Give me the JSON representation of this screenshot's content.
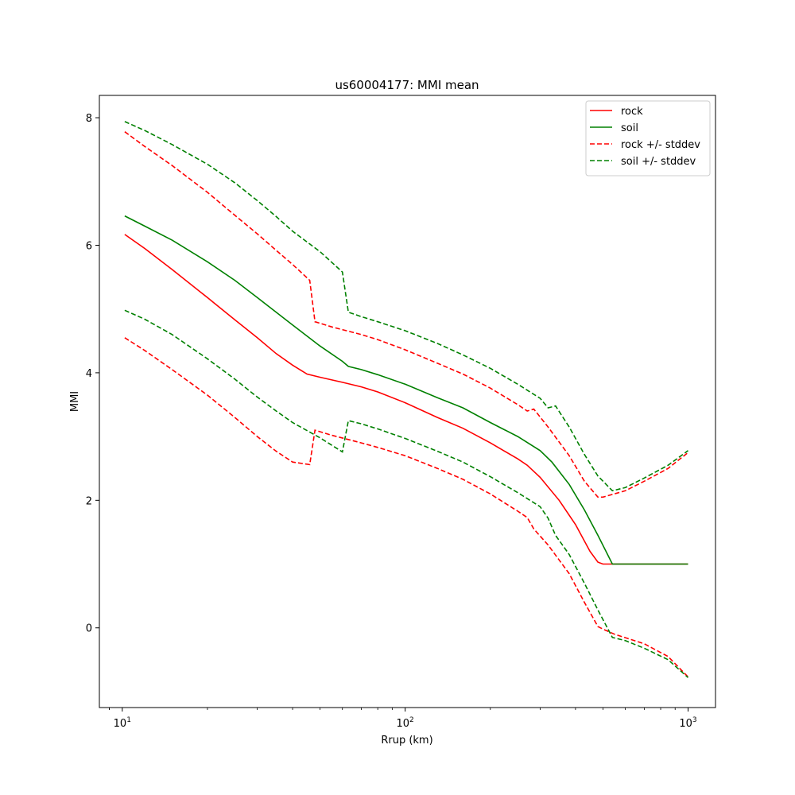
{
  "chart_data": {
    "type": "line",
    "title": "us60004177: MMI mean",
    "xlabel": "Rrup (km)",
    "ylabel": "MMI",
    "xscale": "log",
    "xlim": [
      8.3,
      1250
    ],
    "ylim": [
      -1.25,
      8.35
    ],
    "x_ticks": [
      {
        "value": 10,
        "base": "10",
        "exp": "1"
      },
      {
        "value": 100,
        "base": "10",
        "exp": "2"
      },
      {
        "value": 1000,
        "base": "10",
        "exp": "3"
      }
    ],
    "y_ticks": [
      0,
      2,
      4,
      6,
      8
    ],
    "legend_position": "top-right",
    "grid": false,
    "series": [
      {
        "name": "rock",
        "color": "#ff0000",
        "style": "solid",
        "points": [
          [
            10.2,
            6.17
          ],
          [
            12,
            5.95
          ],
          [
            15,
            5.62
          ],
          [
            20,
            5.18
          ],
          [
            25,
            4.83
          ],
          [
            30,
            4.55
          ],
          [
            35,
            4.3
          ],
          [
            40,
            4.12
          ],
          [
            45,
            3.98
          ],
          [
            50,
            3.93
          ],
          [
            60,
            3.85
          ],
          [
            70,
            3.78
          ],
          [
            80,
            3.7
          ],
          [
            100,
            3.53
          ],
          [
            130,
            3.3
          ],
          [
            160,
            3.13
          ],
          [
            200,
            2.9
          ],
          [
            250,
            2.65
          ],
          [
            270,
            2.55
          ],
          [
            300,
            2.36
          ],
          [
            350,
            2.0
          ],
          [
            400,
            1.62
          ],
          [
            450,
            1.2
          ],
          [
            480,
            1.03
          ],
          [
            500,
            1.0
          ],
          [
            550,
            1.0
          ],
          [
            700,
            1.0
          ],
          [
            1000,
            1.0
          ]
        ]
      },
      {
        "name": "soil",
        "color": "#008000",
        "style": "solid",
        "points": [
          [
            10.2,
            6.46
          ],
          [
            12,
            6.3
          ],
          [
            15,
            6.08
          ],
          [
            20,
            5.74
          ],
          [
            25,
            5.45
          ],
          [
            30,
            5.18
          ],
          [
            35,
            4.95
          ],
          [
            40,
            4.75
          ],
          [
            50,
            4.42
          ],
          [
            60,
            4.18
          ],
          [
            63,
            4.1
          ],
          [
            70,
            4.05
          ],
          [
            80,
            3.97
          ],
          [
            100,
            3.82
          ],
          [
            130,
            3.61
          ],
          [
            160,
            3.45
          ],
          [
            200,
            3.22
          ],
          [
            250,
            3.0
          ],
          [
            300,
            2.78
          ],
          [
            330,
            2.6
          ],
          [
            380,
            2.25
          ],
          [
            430,
            1.85
          ],
          [
            480,
            1.45
          ],
          [
            540,
            1.0
          ],
          [
            600,
            1.0
          ],
          [
            800,
            1.0
          ],
          [
            1000,
            1.0
          ]
        ]
      },
      {
        "name": "rock +/- stddev",
        "color": "#ff0000",
        "style": "dashed",
        "points": [
          [
            10.2,
            7.78
          ],
          [
            12,
            7.55
          ],
          [
            15,
            7.25
          ],
          [
            20,
            6.83
          ],
          [
            25,
            6.47
          ],
          [
            30,
            6.18
          ],
          [
            35,
            5.92
          ],
          [
            40,
            5.7
          ],
          [
            46,
            5.45
          ],
          [
            48,
            4.8
          ],
          [
            55,
            4.72
          ],
          [
            70,
            4.6
          ],
          [
            80,
            4.52
          ],
          [
            100,
            4.36
          ],
          [
            130,
            4.15
          ],
          [
            160,
            3.98
          ],
          [
            200,
            3.76
          ],
          [
            250,
            3.5
          ],
          [
            270,
            3.4
          ],
          [
            285,
            3.43
          ],
          [
            320,
            3.15
          ],
          [
            380,
            2.7
          ],
          [
            430,
            2.3
          ],
          [
            480,
            2.05
          ],
          [
            500,
            2.05
          ],
          [
            600,
            2.15
          ],
          [
            700,
            2.3
          ],
          [
            850,
            2.5
          ],
          [
            1000,
            2.75
          ]
        ]
      },
      {
        "name": "",
        "color": "#ff0000",
        "style": "dashed",
        "points": [
          [
            10.2,
            4.55
          ],
          [
            12,
            4.35
          ],
          [
            15,
            4.05
          ],
          [
            20,
            3.65
          ],
          [
            25,
            3.3
          ],
          [
            30,
            3.0
          ],
          [
            35,
            2.77
          ],
          [
            40,
            2.6
          ],
          [
            46,
            2.56
          ],
          [
            48,
            3.1
          ],
          [
            55,
            3.02
          ],
          [
            70,
            2.9
          ],
          [
            80,
            2.83
          ],
          [
            100,
            2.7
          ],
          [
            130,
            2.5
          ],
          [
            160,
            2.33
          ],
          [
            200,
            2.1
          ],
          [
            250,
            1.83
          ],
          [
            270,
            1.73
          ],
          [
            285,
            1.55
          ],
          [
            320,
            1.3
          ],
          [
            380,
            0.85
          ],
          [
            430,
            0.4
          ],
          [
            480,
            0.02
          ],
          [
            500,
            -0.02
          ],
          [
            550,
            -0.1
          ],
          [
            700,
            -0.25
          ],
          [
            850,
            -0.45
          ],
          [
            1000,
            -0.77
          ]
        ]
      },
      {
        "name": "soil +/- stddev",
        "color": "#008000",
        "style": "dashed",
        "points": [
          [
            10.2,
            7.94
          ],
          [
            12,
            7.8
          ],
          [
            15,
            7.58
          ],
          [
            20,
            7.27
          ],
          [
            25,
            6.98
          ],
          [
            30,
            6.7
          ],
          [
            35,
            6.45
          ],
          [
            40,
            6.22
          ],
          [
            50,
            5.9
          ],
          [
            60,
            5.58
          ],
          [
            63,
            4.95
          ],
          [
            70,
            4.88
          ],
          [
            80,
            4.8
          ],
          [
            100,
            4.66
          ],
          [
            130,
            4.46
          ],
          [
            160,
            4.28
          ],
          [
            200,
            4.07
          ],
          [
            250,
            3.82
          ],
          [
            300,
            3.6
          ],
          [
            320,
            3.45
          ],
          [
            340,
            3.48
          ],
          [
            380,
            3.15
          ],
          [
            430,
            2.72
          ],
          [
            480,
            2.38
          ],
          [
            540,
            2.15
          ],
          [
            600,
            2.2
          ],
          [
            700,
            2.35
          ],
          [
            850,
            2.55
          ],
          [
            1000,
            2.78
          ]
        ]
      },
      {
        "name": "",
        "color": "#008000",
        "style": "dashed",
        "points": [
          [
            10.2,
            4.98
          ],
          [
            12,
            4.84
          ],
          [
            15,
            4.6
          ],
          [
            20,
            4.22
          ],
          [
            25,
            3.9
          ],
          [
            30,
            3.62
          ],
          [
            35,
            3.4
          ],
          [
            40,
            3.22
          ],
          [
            50,
            2.98
          ],
          [
            60,
            2.76
          ],
          [
            63,
            3.25
          ],
          [
            70,
            3.2
          ],
          [
            80,
            3.12
          ],
          [
            100,
            2.97
          ],
          [
            130,
            2.77
          ],
          [
            160,
            2.6
          ],
          [
            200,
            2.37
          ],
          [
            250,
            2.12
          ],
          [
            300,
            1.9
          ],
          [
            320,
            1.72
          ],
          [
            340,
            1.45
          ],
          [
            380,
            1.15
          ],
          [
            430,
            0.7
          ],
          [
            480,
            0.28
          ],
          [
            540,
            -0.15
          ],
          [
            600,
            -0.2
          ],
          [
            700,
            -0.32
          ],
          [
            850,
            -0.5
          ],
          [
            1000,
            -0.78
          ]
        ]
      }
    ]
  }
}
